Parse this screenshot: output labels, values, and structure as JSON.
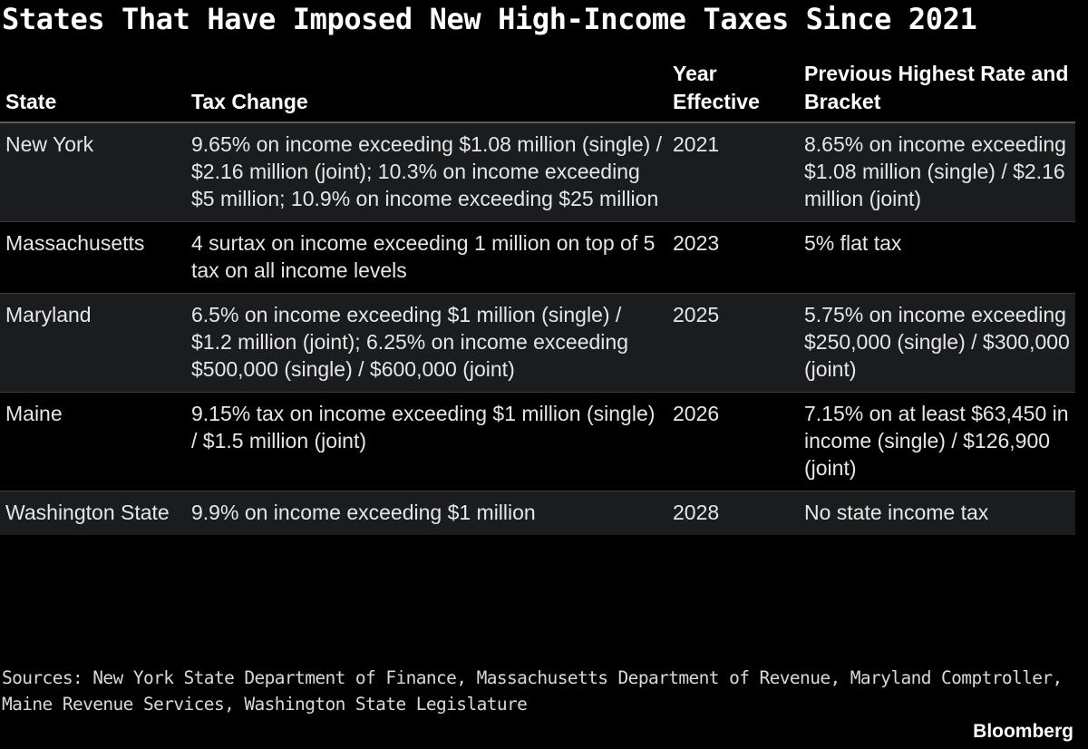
{
  "title": "States That Have Imposed New High-Income Taxes Since 2021",
  "table": {
    "headers": {
      "state": "State",
      "tax_change": "Tax Change",
      "year_effective": "Year Effective",
      "previous": "Previous Highest Rate and Bracket"
    },
    "rows": [
      {
        "state": "New York",
        "tax_change": "9.65% on income exceeding $1.08 million (single) / $2.16 million (joint); 10.3% on income exceeding $5 million; 10.9% on income exceeding $25 million",
        "year": "2021",
        "previous": "8.65% on income exceeding $1.08 million (single) / $2.16 million (joint)"
      },
      {
        "state": "Massachusetts",
        "tax_change": "4 surtax on income exceeding 1 million on top of 5 tax on all income levels",
        "year": "2023",
        "previous": "5% flat tax"
      },
      {
        "state": "Maryland",
        "tax_change": "6.5% on income exceeding $1 million (single) / $1.2 million (joint); 6.25% on income exceeding $500,000 (single) / $600,000 (joint)",
        "year": "2025",
        "previous": "5.75% on income exceeding $250,000 (single) / $300,000 (joint)"
      },
      {
        "state": "Maine",
        "tax_change": "9.15% tax on income exceeding $1 million (single) / $1.5 million (joint)",
        "year": "2026",
        "previous": "7.15% on at least $63,450 in income (single) / $126,900 (joint)"
      },
      {
        "state": "Washington State",
        "tax_change": "9.9% on income exceeding $1 million",
        "year": "2028",
        "previous": "No state income tax"
      }
    ]
  },
  "sources": "Sources: New York State Department of Finance, Massachusetts Department of Revenue, Maryland Comptroller, Maine Revenue Services, Washington State Legislature",
  "brand": "Bloomberg",
  "colors": {
    "background": "#000000",
    "row_shade": "#1b1c1e",
    "text": "#ffffff"
  }
}
